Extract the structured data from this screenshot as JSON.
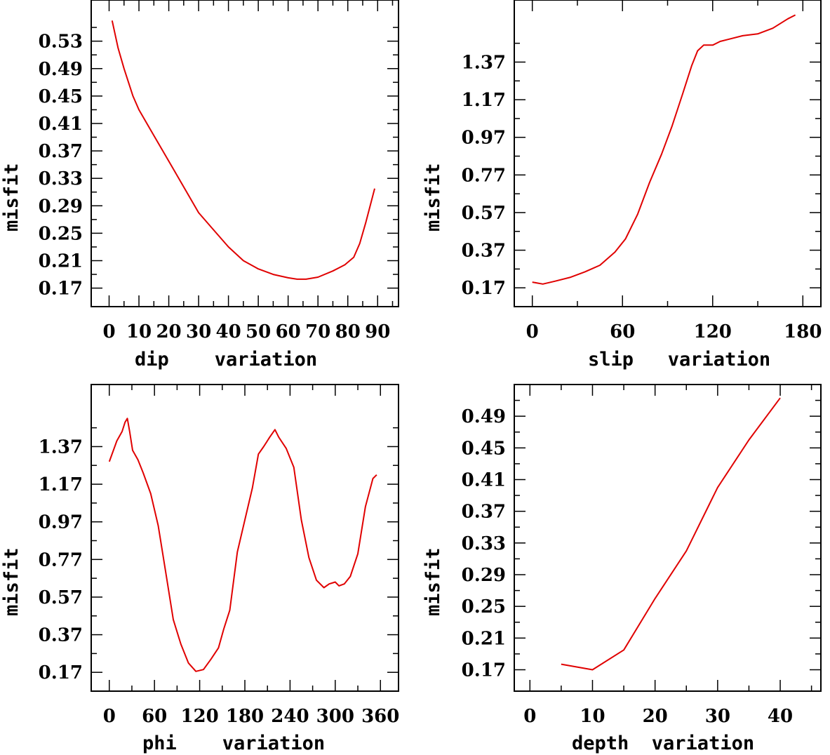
{
  "chart_data": [
    {
      "type": "line",
      "xlabel": "dip    variation",
      "ylabel": "misfit",
      "xlim": [
        -6,
        97
      ],
      "ylim": [
        0.143,
        0.59
      ],
      "xticks": [
        0,
        10,
        20,
        30,
        40,
        50,
        60,
        70,
        80,
        90
      ],
      "xtick_labels": [
        "0",
        "10",
        "20",
        "30",
        "40",
        "50",
        "60",
        "70",
        "80",
        "90"
      ],
      "yticks": [
        0.17,
        0.21,
        0.25,
        0.29,
        0.33,
        0.37,
        0.41,
        0.45,
        0.49,
        0.53
      ],
      "ytick_labels": [
        "0.17",
        "0.21",
        "0.25",
        "0.29",
        "0.33",
        "0.37",
        "0.41",
        "0.45",
        "0.49",
        "0.53"
      ],
      "series": [
        {
          "name": "dip",
          "color": "#e00000",
          "x": [
            1,
            3,
            5,
            8,
            10,
            14,
            18,
            22,
            26,
            30,
            35,
            40,
            45,
            50,
            55,
            60,
            63,
            66,
            70,
            75,
            79,
            82,
            84,
            86,
            89
          ],
          "y": [
            0.56,
            0.52,
            0.49,
            0.45,
            0.43,
            0.4,
            0.37,
            0.34,
            0.31,
            0.28,
            0.255,
            0.23,
            0.21,
            0.198,
            0.19,
            0.185,
            0.183,
            0.183,
            0.186,
            0.195,
            0.204,
            0.215,
            0.235,
            0.265,
            0.315
          ]
        }
      ]
    },
    {
      "type": "line",
      "xlabel": "slip   variation",
      "ylabel": "misfit",
      "xlim": [
        -12,
        192
      ],
      "ylim": [
        0.07,
        1.7
      ],
      "xticks": [
        0,
        60,
        120,
        180
      ],
      "xtick_labels": [
        "0",
        "60",
        "120",
        "180"
      ],
      "yticks": [
        0.17,
        0.37,
        0.57,
        0.77,
        0.97,
        1.17,
        1.37
      ],
      "ytick_labels": [
        "0.17",
        "0.37",
        "0.57",
        "0.77",
        "0.97",
        "1.17",
        "1.37"
      ],
      "series": [
        {
          "name": "slip",
          "color": "#e00000",
          "x": [
            0,
            7,
            15,
            25,
            35,
            45,
            55,
            62,
            70,
            78,
            86,
            93,
            100,
            106,
            110,
            114,
            120,
            125,
            130,
            140,
            150,
            160,
            170,
            175
          ],
          "y": [
            0.2,
            0.19,
            0.205,
            0.225,
            0.255,
            0.29,
            0.36,
            0.43,
            0.56,
            0.73,
            0.88,
            1.03,
            1.2,
            1.35,
            1.43,
            1.46,
            1.46,
            1.48,
            1.49,
            1.51,
            1.52,
            1.55,
            1.6,
            1.62
          ]
        }
      ]
    },
    {
      "type": "line",
      "xlabel": "phi    variation",
      "ylabel": "misfit",
      "xlim": [
        -24,
        384
      ],
      "ylim": [
        0.07,
        1.7
      ],
      "xticks": [
        0,
        60,
        120,
        180,
        240,
        300,
        360
      ],
      "xtick_labels": [
        "0",
        "60",
        "120",
        "180",
        "240",
        "300",
        "360"
      ],
      "yticks": [
        0.17,
        0.37,
        0.57,
        0.77,
        0.97,
        1.17,
        1.37
      ],
      "ytick_labels": [
        "0.17",
        "0.37",
        "0.57",
        "0.77",
        "0.97",
        "1.17",
        "1.37"
      ],
      "series": [
        {
          "name": "phi",
          "color": "#e00000",
          "x": [
            0,
            10,
            17,
            21,
            24,
            27,
            31,
            38,
            45,
            55,
            65,
            75,
            85,
            95,
            105,
            115,
            125,
            135,
            145,
            152,
            160,
            170,
            180,
            190,
            198,
            205,
            213,
            220,
            225,
            235,
            245,
            255,
            265,
            275,
            285,
            292,
            300,
            305,
            312,
            320,
            330,
            340,
            350,
            355
          ],
          "y": [
            1.29,
            1.4,
            1.45,
            1.5,
            1.52,
            1.45,
            1.35,
            1.3,
            1.23,
            1.12,
            0.95,
            0.7,
            0.45,
            0.32,
            0.22,
            0.175,
            0.185,
            0.24,
            0.3,
            0.4,
            0.5,
            0.81,
            0.98,
            1.15,
            1.33,
            1.37,
            1.42,
            1.46,
            1.42,
            1.36,
            1.26,
            0.98,
            0.78,
            0.66,
            0.62,
            0.64,
            0.65,
            0.63,
            0.64,
            0.68,
            0.8,
            1.05,
            1.2,
            1.22
          ]
        }
      ]
    },
    {
      "type": "line",
      "xlabel": "depth  variation",
      "ylabel": "misfit",
      "xlim": [
        -2.5,
        46.5
      ],
      "ylim": [
        0.143,
        0.53
      ],
      "xticks": [
        0,
        10,
        20,
        30,
        40
      ],
      "xtick_labels": [
        "0",
        "10",
        "20",
        "30",
        "40"
      ],
      "yticks": [
        0.17,
        0.21,
        0.25,
        0.29,
        0.33,
        0.37,
        0.41,
        0.45,
        0.49
      ],
      "ytick_labels": [
        "0.17",
        "0.21",
        "0.25",
        "0.29",
        "0.33",
        "0.37",
        "0.41",
        "0.45",
        "0.49"
      ],
      "series": [
        {
          "name": "depth",
          "color": "#e00000",
          "x": [
            5,
            10,
            15,
            20,
            25,
            30,
            35,
            40
          ],
          "y": [
            0.177,
            0.17,
            0.195,
            0.26,
            0.32,
            0.4,
            0.46,
            0.513
          ]
        }
      ]
    }
  ]
}
